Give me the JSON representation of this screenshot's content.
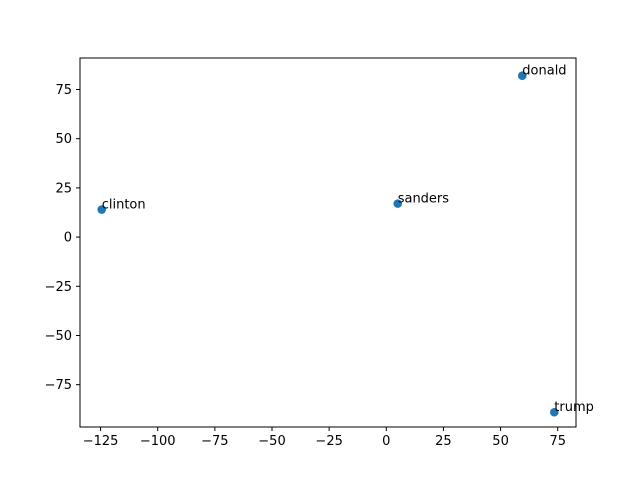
{
  "chart_data": {
    "type": "scatter",
    "title": "",
    "xlabel": "",
    "ylabel": "",
    "xlim": [
      -134,
      83
    ],
    "ylim": [
      -96.5,
      91
    ],
    "xticks": [
      -125,
      -100,
      -75,
      -50,
      -25,
      0,
      25,
      50,
      75
    ],
    "yticks": [
      -75,
      -50,
      -25,
      0,
      25,
      50,
      75
    ],
    "xtick_labels": [
      "−125",
      "−100",
      "−75",
      "−50",
      "−25",
      "0",
      "25",
      "50",
      "75"
    ],
    "ytick_labels": [
      "−75",
      "−50",
      "−25",
      "0",
      "25",
      "50",
      "75"
    ],
    "grid": false,
    "series": [
      {
        "color": "#1f77b4",
        "points": [
          {
            "label": "clinton",
            "x": -124.5,
            "y": 14.0
          },
          {
            "label": "sanders",
            "x": 5.0,
            "y": 17.0
          },
          {
            "label": "donald",
            "x": 59.5,
            "y": 82.0
          },
          {
            "label": "trump",
            "x": 73.5,
            "y": -89.0
          }
        ]
      }
    ]
  }
}
